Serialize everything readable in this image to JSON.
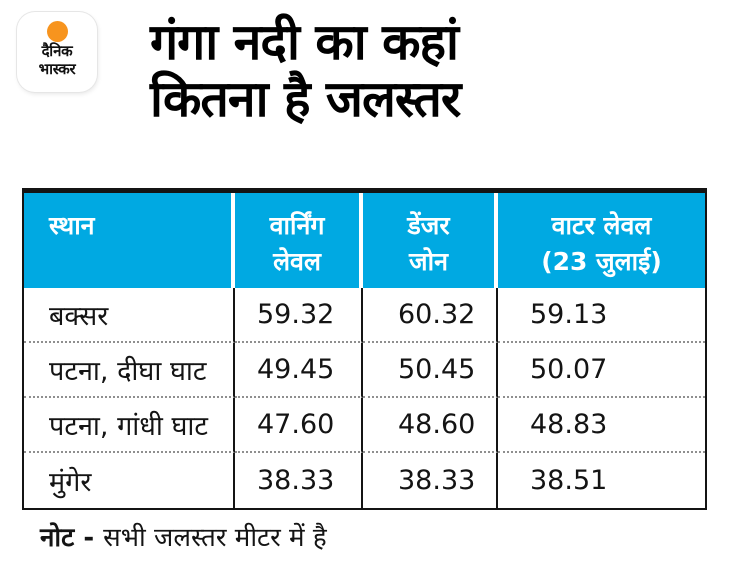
{
  "colors": {
    "header_bg": "#00a9e2",
    "logo_orange": "#f7941e",
    "border": "#141414"
  },
  "logo": {
    "line1": "दैनिक",
    "line2": "भास्कर"
  },
  "title": {
    "line1": "गंगा नदी का कहां",
    "line2": "कितना है जलस्तर"
  },
  "table": {
    "headers": [
      "स्थान",
      "वार्निंग\nलेवल",
      "डेंजर\nजोन",
      "वाटर लेवल\n(23 जुलाई)"
    ]
  },
  "chart_data": {
    "type": "table",
    "title": "गंगा नदी का कहां कितना है जलस्तर",
    "columns": [
      "स्थान",
      "वार्निंग लेवल",
      "डेंजर जोन",
      "वाटर लेवल (23 जुलाई)"
    ],
    "rows": [
      [
        "बक्सर",
        "59.32",
        "60.32",
        "59.13"
      ],
      [
        "पटना, दीघा घाट",
        "49.45",
        "50.45",
        "50.07"
      ],
      [
        "पटना, गांधी घाट",
        "47.60",
        "48.60",
        "48.83"
      ],
      [
        "मुंगेर",
        "38.33",
        "38.33",
        "38.51"
      ]
    ],
    "unit_note": "सभी जलस्तर मीटर में है"
  },
  "note": {
    "label": "नोट - ",
    "text": "सभी जलस्तर मीटर में है"
  }
}
